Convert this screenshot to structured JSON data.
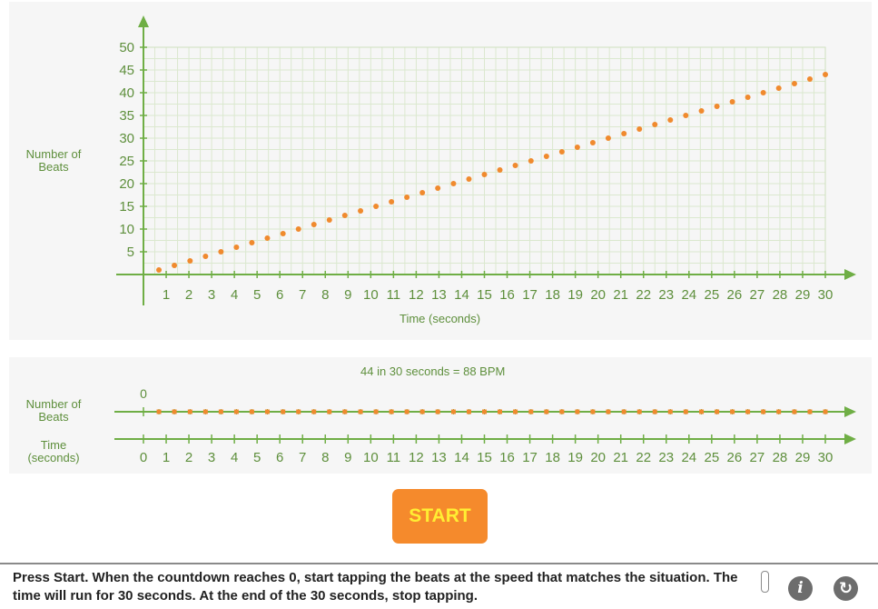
{
  "graph": {
    "ylabel": "Number of Beats",
    "xlabel": "Time (seconds)",
    "y_ticks": [
      "5",
      "10",
      "15",
      "20",
      "25",
      "30",
      "35",
      "40",
      "45",
      "50"
    ],
    "x_ticks": [
      "1",
      "2",
      "3",
      "4",
      "5",
      "6",
      "7",
      "8",
      "9",
      "10",
      "11",
      "12",
      "13",
      "14",
      "15",
      "16",
      "17",
      "18",
      "19",
      "20",
      "21",
      "22",
      "23",
      "24",
      "25",
      "26",
      "27",
      "28",
      "29",
      "30"
    ]
  },
  "number_line": {
    "beats_label": "Number of Beats",
    "time_label": "Time (seconds)",
    "summary": "44 in 30 seconds = 88 BPM",
    "beats_start": "0",
    "time_ticks": [
      "0",
      "1",
      "2",
      "3",
      "4",
      "5",
      "6",
      "7",
      "8",
      "9",
      "10",
      "11",
      "12",
      "13",
      "14",
      "15",
      "16",
      "17",
      "18",
      "19",
      "20",
      "21",
      "22",
      "23",
      "24",
      "25",
      "26",
      "27",
      "28",
      "29",
      "30"
    ]
  },
  "start_label": "START",
  "instructions": "Press Start. When the countdown reaches 0, start tapping the beats at the speed that matches the situation. The time will run for 30 seconds. At the end of the 30 seconds, stop tapping.",
  "controls": {
    "info_symbol": "i",
    "reset_symbol": "↻"
  },
  "icons": {
    "info": "info-icon",
    "reset": "reset-icon"
  },
  "colors": {
    "axis": "#6fae45",
    "dots": "#f08a2e",
    "text": "#5e8f3c",
    "button": "#f58a2c",
    "button_text": "#ffee33"
  },
  "chart_data": {
    "type": "scatter",
    "xlabel": "Time (seconds)",
    "ylabel": "Number of Beats",
    "xlim": [
      0,
      30
    ],
    "ylim": [
      0,
      50
    ],
    "grid": true,
    "x": [
      0.68,
      1.36,
      2.05,
      2.73,
      3.41,
      4.09,
      4.77,
      5.45,
      6.14,
      6.82,
      7.5,
      8.18,
      8.86,
      9.55,
      10.23,
      10.91,
      11.59,
      12.27,
      12.95,
      13.64,
      14.32,
      15.0,
      15.68,
      16.36,
      17.05,
      17.73,
      18.41,
      19.09,
      19.77,
      20.45,
      21.14,
      21.82,
      22.5,
      23.18,
      23.86,
      24.55,
      25.23,
      25.91,
      26.59,
      27.27,
      27.95,
      28.64,
      29.32,
      30.0
    ],
    "y": [
      1,
      2,
      3,
      4,
      5,
      6,
      7,
      8,
      9,
      10,
      11,
      12,
      13,
      14,
      15,
      16,
      17,
      18,
      19,
      20,
      21,
      22,
      23,
      24,
      25,
      26,
      27,
      28,
      29,
      30,
      31,
      32,
      33,
      34,
      35,
      36,
      37,
      38,
      39,
      40,
      41,
      42,
      43,
      44
    ]
  }
}
